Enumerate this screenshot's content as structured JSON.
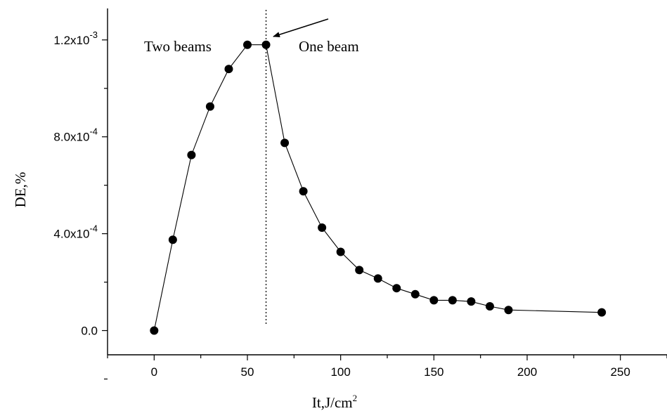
{
  "chart_data": {
    "type": "scatter",
    "xlabel": "It,J/cm",
    "xlabel_sup": "2",
    "ylabel": "DE,%",
    "xlim": [
      -25,
      275
    ],
    "ylim": [
      -0.0001,
      0.00133
    ],
    "x_ticks": [
      {
        "value": 0,
        "label": "0"
      },
      {
        "value": 50,
        "label": "50"
      },
      {
        "value": 100,
        "label": "100"
      },
      {
        "value": 150,
        "label": "150"
      },
      {
        "value": 200,
        "label": "200"
      },
      {
        "value": 250,
        "label": "250"
      }
    ],
    "y_ticks": [
      {
        "value": 0,
        "base": "0.0",
        "exp": ""
      },
      {
        "value": 0.0004,
        "base": "4.0x10",
        "exp": "-4"
      },
      {
        "value": 0.0008,
        "base": "8.0x10",
        "exp": "-4"
      },
      {
        "value": 0.0012,
        "base": "1.2x10",
        "exp": "-3"
      }
    ],
    "series": [
      {
        "x": [
          0,
          10,
          20,
          30,
          40,
          50,
          60,
          70,
          80,
          90,
          100,
          110,
          120,
          130,
          140,
          150,
          160,
          170,
          180,
          190,
          240
        ],
        "y": [
          0.0,
          0.000375,
          0.000725,
          0.000925,
          0.00108,
          0.00118,
          0.00118,
          0.000775,
          0.000575,
          0.000425,
          0.000325,
          0.00025,
          0.000215,
          0.000175,
          0.00015,
          0.000125,
          0.000125,
          0.00012,
          0.0001,
          8.5e-05,
          7.5e-05
        ],
        "marker": "filled-circle",
        "line": "solid",
        "color": "#000000"
      }
    ],
    "reference_line": {
      "x": 60,
      "style": "dotted"
    },
    "annotations": [
      {
        "text": "Two beams"
      },
      {
        "text": "One beam"
      }
    ],
    "arrow": {
      "points_to_x": 60
    },
    "grid": false
  }
}
